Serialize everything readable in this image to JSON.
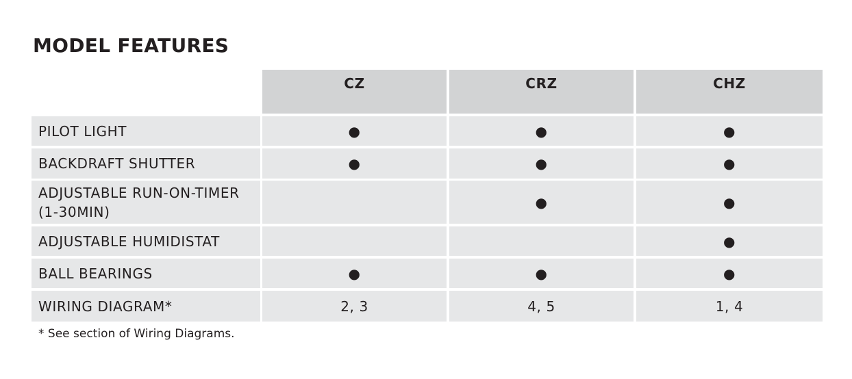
{
  "title": "MODEL FEATURES",
  "table": {
    "header": [
      "CZ",
      "CRZ",
      "CHZ"
    ],
    "rows": [
      [
        "PILOT LIGHT",
        "●",
        "●",
        "●"
      ],
      [
        "BACKDRAFT SHUTTER",
        "●",
        "●",
        "●"
      ],
      [
        "ADJUSTABLE RUN-ON-TIMER (1-30MIN)",
        null,
        "●",
        "●"
      ],
      [
        "ADJUSTABLE HUMIDISTAT",
        null,
        null,
        "●"
      ],
      [
        "BALL BEARINGS",
        "●",
        "●",
        "●"
      ],
      [
        "WIRING DIAGRAM*",
        "2, 3",
        "4, 5",
        "1, 4"
      ]
    ]
  },
  "footnote": "* See section of Wiring Diagrams."
}
